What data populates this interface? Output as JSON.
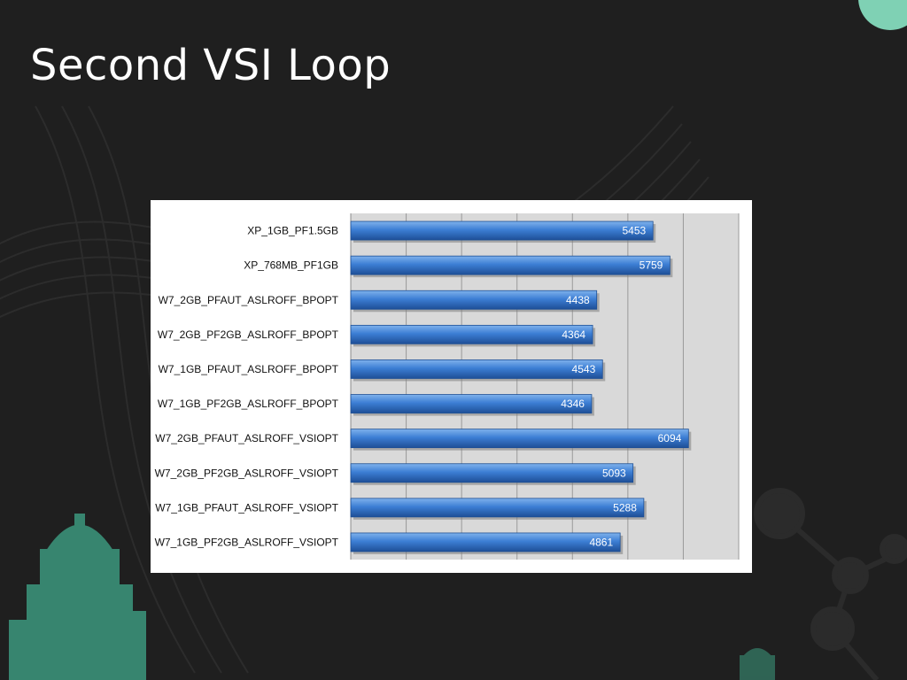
{
  "slide": {
    "title": "Second VSI Loop"
  },
  "colors": {
    "background": "#1f1f1f",
    "decoration": "#3fa88a",
    "plot_area": "#d9d9d9",
    "bar": "#3c7ed4"
  },
  "chart_data": {
    "type": "bar",
    "orientation": "horizontal",
    "categories": [
      "XP_1GB_PF1.5GB",
      "XP_768MB_PF1GB",
      "W7_2GB_PFAUT_ASLROFF_BPOPT",
      "W7_2GB_PF2GB_ASLROFF_BPOPT",
      "W7_1GB_PFAUT_ASLROFF_BPOPT",
      "W7_1GB_PF2GB_ASLROFF_BPOPT",
      "W7_2GB_PFAUT_ASLROFF_VSIOPT",
      "W7_2GB_PF2GB_ASLROFF_VSIOPT",
      "W7_1GB_PFAUT_ASLROFF_VSIOPT",
      "W7_1GB_PF2GB_ASLROFF_VSIOPT"
    ],
    "values": [
      5453,
      5759,
      4438,
      4364,
      4543,
      4346,
      6094,
      5093,
      5288,
      4861
    ],
    "xlim": [
      0,
      7000
    ],
    "grid": true,
    "legend": "none"
  }
}
